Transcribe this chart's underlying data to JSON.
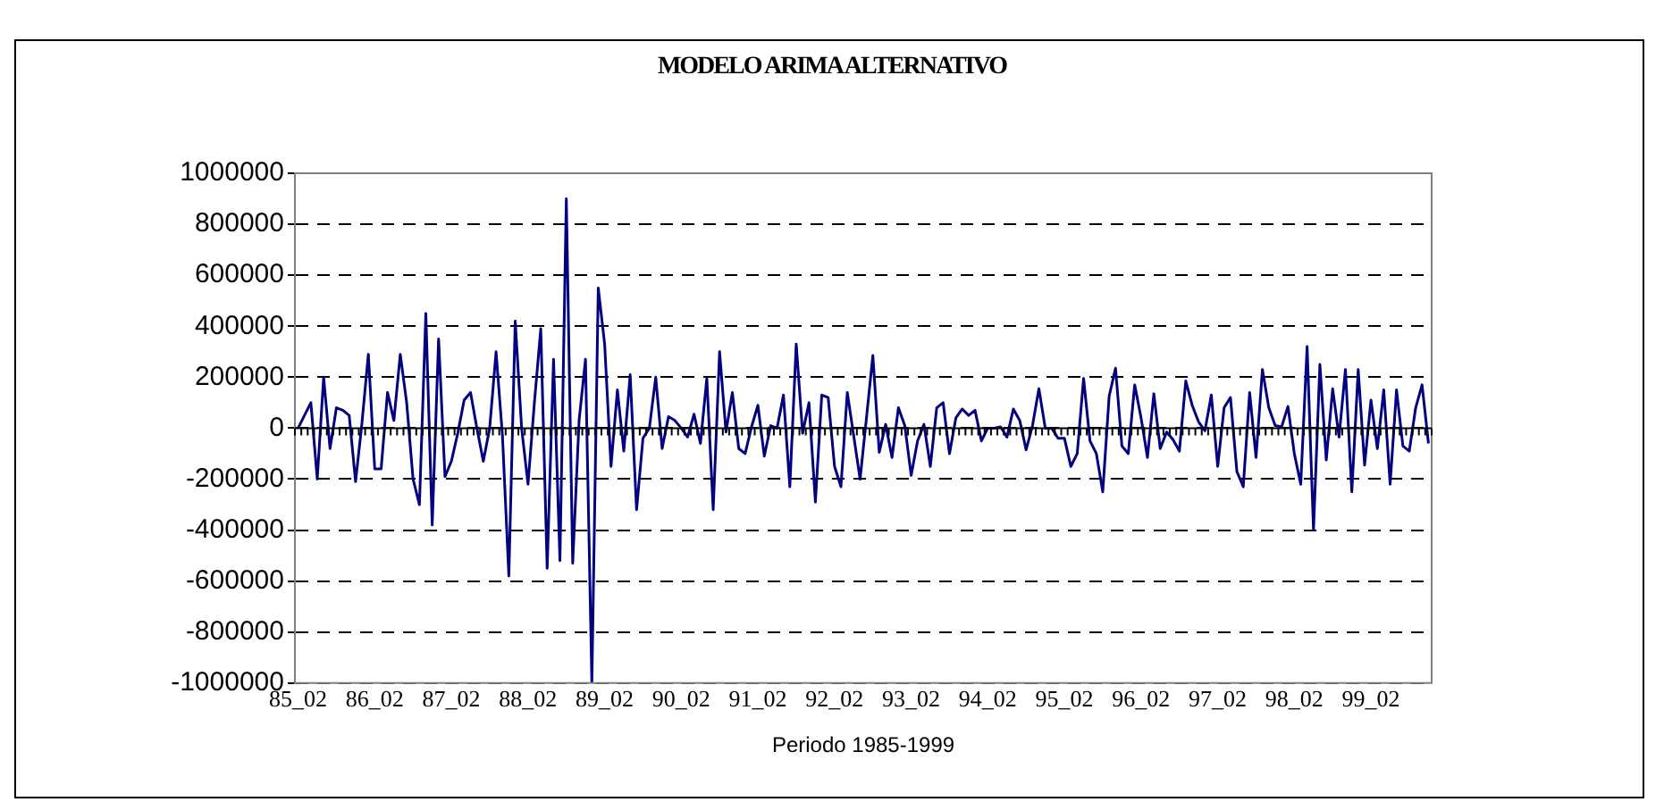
{
  "chart_data": {
    "type": "line",
    "title": "MODELO ARIMA ALTERNATIVO",
    "xlabel": "Periodo 1985-1999",
    "categories": [
      "85_02",
      null,
      null,
      null,
      null,
      null,
      null,
      null,
      null,
      null,
      null,
      null,
      "86_02",
      null,
      null,
      null,
      null,
      null,
      null,
      null,
      null,
      null,
      null,
      null,
      "87_02",
      null,
      null,
      null,
      null,
      null,
      null,
      null,
      null,
      null,
      null,
      null,
      "88_02",
      null,
      null,
      null,
      null,
      null,
      null,
      null,
      null,
      null,
      null,
      null,
      "89_02",
      null,
      null,
      null,
      null,
      null,
      null,
      null,
      null,
      null,
      null,
      null,
      "90_02",
      null,
      null,
      null,
      null,
      null,
      null,
      null,
      null,
      null,
      null,
      null,
      "91_02",
      null,
      null,
      null,
      null,
      null,
      null,
      null,
      null,
      null,
      null,
      null,
      "92_02",
      null,
      null,
      null,
      null,
      null,
      null,
      null,
      null,
      null,
      null,
      null,
      "93_02",
      null,
      null,
      null,
      null,
      null,
      null,
      null,
      null,
      null,
      null,
      null,
      "94_02",
      null,
      null,
      null,
      null,
      null,
      null,
      null,
      null,
      null,
      null,
      null,
      "95_02",
      null,
      null,
      null,
      null,
      null,
      null,
      null,
      null,
      null,
      null,
      null,
      "96_02",
      null,
      null,
      null,
      null,
      null,
      null,
      null,
      null,
      null,
      null,
      null,
      "97_02",
      null,
      null,
      null,
      null,
      null,
      null,
      null,
      null,
      null,
      null,
      null,
      "98_02",
      null,
      null,
      null,
      null,
      null,
      null,
      null,
      null,
      null,
      null,
      null,
      "99_02",
      null,
      null,
      null,
      null,
      null,
      null,
      null,
      null,
      null
    ],
    "series": [
      {
        "color": "#000080",
        "values": [
          0,
          50000,
          100000,
          -200000,
          200000,
          -80000,
          80000,
          70000,
          50000,
          -210000,
          20000,
          290000,
          -160000,
          -160000,
          140000,
          30000,
          290000,
          100000,
          -200000,
          -300000,
          450000,
          -380000,
          350000,
          -190000,
          -130000,
          -20000,
          110000,
          140000,
          0,
          -130000,
          0,
          300000,
          -30000,
          -580000,
          420000,
          0,
          -220000,
          100000,
          390000,
          -550000,
          270000,
          -520000,
          900000,
          -530000,
          30000,
          270000,
          -1000000,
          550000,
          330000,
          -150000,
          150000,
          -90000,
          210000,
          -320000,
          -40000,
          0,
          200000,
          -80000,
          45000,
          30000,
          0,
          -35000,
          55000,
          -60000,
          195000,
          -320000,
          300000,
          -15000,
          140000,
          -80000,
          -100000,
          5000,
          90000,
          -110000,
          10000,
          0,
          130000,
          -230000,
          330000,
          -20000,
          100000,
          -290000,
          130000,
          120000,
          -150000,
          -230000,
          140000,
          -30000,
          -200000,
          40000,
          285000,
          -95000,
          15000,
          -115000,
          80000,
          10000,
          -185000,
          -50000,
          15000,
          -150000,
          80000,
          100000,
          -100000,
          40000,
          75000,
          50000,
          70000,
          -50000,
          0,
          0,
          5000,
          -35000,
          75000,
          30000,
          -85000,
          10000,
          155000,
          0,
          0,
          -40000,
          -40000,
          -150000,
          -100000,
          195000,
          -50000,
          -100000,
          -250000,
          125000,
          235000,
          -70000,
          -100000,
          170000,
          40000,
          -115000,
          135000,
          -80000,
          -15000,
          -45000,
          -90000,
          185000,
          90000,
          25000,
          -10000,
          130000,
          -150000,
          80000,
          120000,
          -170000,
          -230000,
          140000,
          -115000,
          230000,
          80000,
          10000,
          5000,
          85000,
          -100000,
          -220000,
          320000,
          -400000,
          250000,
          -125000,
          155000,
          -35000,
          230000,
          -250000,
          230000,
          -145000,
          110000,
          -80000,
          150000,
          -220000,
          150000,
          -70000,
          -90000,
          80000,
          170000,
          -60000
        ]
      }
    ],
    "ylim": [
      -1000000,
      1000000
    ],
    "yticks": [
      -1000000,
      -800000,
      -600000,
      -400000,
      -200000,
      0,
      200000,
      400000,
      600000,
      800000,
      1000000
    ],
    "grid": "y",
    "legend": false,
    "marker": "none",
    "line_style": "solid"
  }
}
